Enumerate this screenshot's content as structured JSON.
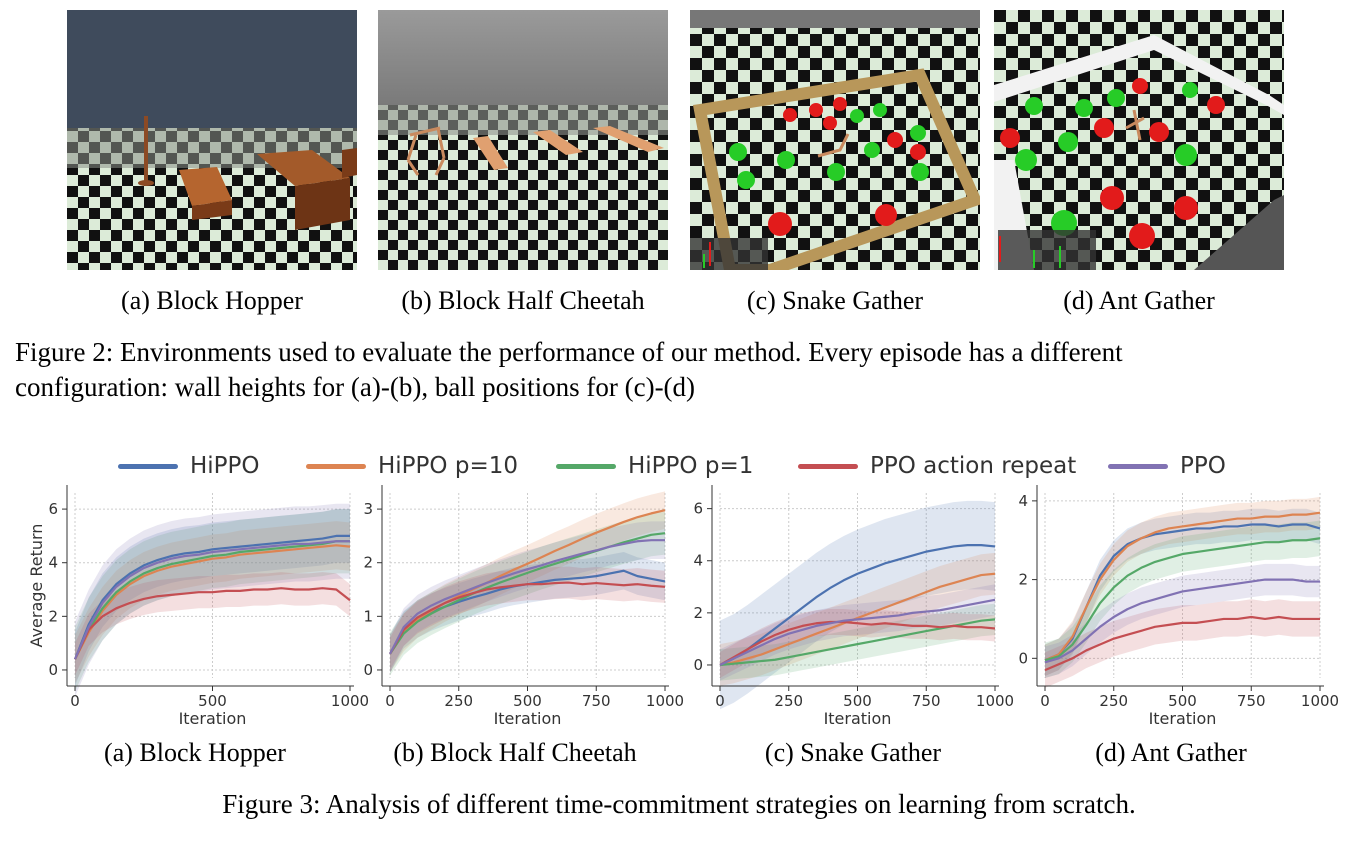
{
  "figure2": {
    "panels": [
      {
        "id": "a",
        "caption": "(a) Block Hopper"
      },
      {
        "id": "b",
        "caption": "(b) Block Half Cheetah"
      },
      {
        "id": "c",
        "caption": "(c) Snake Gather"
      },
      {
        "id": "d",
        "caption": "(d) Ant Gather"
      }
    ],
    "caption_line1": "Figure 2: Environments used to evaluate the performance of our method. Every episode has a different",
    "caption_line2": "configuration: wall heights for (a)-(b), ball positions for (c)-(d)"
  },
  "figure3": {
    "caption": "Figure 3: Analysis of different time-commitment strategies on learning from scratch.",
    "subcaptions": [
      "(a) Block Hopper",
      "(b) Block Half Cheetah",
      "(c) Snake Gather",
      "(d) Ant Gather"
    ]
  },
  "legend": [
    {
      "name": "HiPPO",
      "color": "#4c72b0"
    },
    {
      "name": "HiPPO p=10",
      "color": "#dd8452"
    },
    {
      "name": "HiPPO p=1",
      "color": "#55a868"
    },
    {
      "name": "PPO action repeat",
      "color": "#c44e52"
    },
    {
      "name": "PPO",
      "color": "#8172b3"
    }
  ],
  "chart_data": [
    {
      "type": "line",
      "title": "(a) Block Hopper",
      "xlabel": "Iteration",
      "ylabel": "Average Return",
      "xlim": [
        0,
        1000
      ],
      "ylim": [
        -0.3,
        6.6
      ],
      "xticks": [
        0,
        500,
        1000
      ],
      "yticks": [
        0,
        2,
        4,
        6
      ],
      "x": [
        0,
        50,
        100,
        150,
        200,
        250,
        300,
        350,
        400,
        450,
        500,
        550,
        600,
        650,
        700,
        750,
        800,
        850,
        900,
        950,
        1000
      ],
      "series": [
        {
          "name": "HiPPO",
          "values": [
            0.4,
            1.7,
            2.6,
            3.2,
            3.6,
            3.9,
            4.1,
            4.25,
            4.35,
            4.4,
            4.5,
            4.55,
            4.6,
            4.65,
            4.7,
            4.75,
            4.8,
            4.85,
            4.9,
            5.0,
            5.0
          ],
          "band": 1.0
        },
        {
          "name": "HiPPO p=10",
          "values": [
            0.4,
            1.4,
            2.2,
            2.8,
            3.2,
            3.5,
            3.7,
            3.85,
            3.95,
            4.05,
            4.15,
            4.2,
            4.3,
            4.35,
            4.4,
            4.45,
            4.5,
            4.55,
            4.6,
            4.65,
            4.6
          ],
          "band": 0.9
        },
        {
          "name": "HiPPO p=1",
          "values": [
            0.4,
            1.5,
            2.3,
            2.9,
            3.3,
            3.6,
            3.8,
            3.95,
            4.05,
            4.15,
            4.25,
            4.3,
            4.4,
            4.45,
            4.5,
            4.55,
            4.6,
            4.65,
            4.7,
            4.8,
            4.8
          ],
          "band": 1.2
        },
        {
          "name": "PPO action repeat",
          "values": [
            0.4,
            1.5,
            2.0,
            2.3,
            2.5,
            2.65,
            2.75,
            2.8,
            2.85,
            2.9,
            2.9,
            2.95,
            2.95,
            3.0,
            3.0,
            3.05,
            3.0,
            3.0,
            3.05,
            3.0,
            2.6
          ],
          "band": 0.6
        },
        {
          "name": "PPO",
          "values": [
            0.4,
            1.6,
            2.5,
            3.1,
            3.5,
            3.8,
            4.0,
            4.15,
            4.25,
            4.3,
            4.4,
            4.45,
            4.5,
            4.55,
            4.6,
            4.65,
            4.7,
            4.7,
            4.75,
            4.8,
            4.8
          ],
          "band": 1.4
        }
      ]
    },
    {
      "type": "line",
      "title": "(b) Block Half Cheetah",
      "xlabel": "Iteration",
      "ylabel": "",
      "xlim": [
        0,
        1000
      ],
      "ylim": [
        -0.15,
        3.3
      ],
      "xticks": [
        0,
        250,
        500,
        750,
        1000
      ],
      "yticks": [
        0,
        1,
        2,
        3
      ],
      "x": [
        0,
        50,
        100,
        150,
        200,
        250,
        300,
        350,
        400,
        450,
        500,
        550,
        600,
        650,
        700,
        750,
        800,
        850,
        900,
        950,
        1000
      ],
      "series": [
        {
          "name": "HiPPO",
          "values": [
            0.3,
            0.75,
            0.95,
            1.08,
            1.18,
            1.27,
            1.35,
            1.42,
            1.5,
            1.56,
            1.6,
            1.64,
            1.68,
            1.7,
            1.72,
            1.75,
            1.8,
            1.85,
            1.75,
            1.7,
            1.65
          ],
          "band": 0.35
        },
        {
          "name": "HiPPO p=10",
          "values": [
            0.3,
            0.7,
            0.95,
            1.1,
            1.25,
            1.38,
            1.5,
            1.62,
            1.75,
            1.87,
            1.98,
            2.1,
            2.22,
            2.33,
            2.45,
            2.56,
            2.66,
            2.76,
            2.85,
            2.92,
            2.98
          ],
          "band": 0.35
        },
        {
          "name": "HiPPO p=1",
          "values": [
            0.3,
            0.68,
            0.9,
            1.05,
            1.18,
            1.3,
            1.42,
            1.53,
            1.63,
            1.72,
            1.81,
            1.9,
            1.98,
            2.06,
            2.14,
            2.22,
            2.3,
            2.38,
            2.45,
            2.52,
            2.55
          ],
          "band": 0.4
        },
        {
          "name": "PPO action repeat",
          "values": [
            0.3,
            0.75,
            0.98,
            1.12,
            1.25,
            1.35,
            1.43,
            1.5,
            1.54,
            1.57,
            1.6,
            1.6,
            1.62,
            1.63,
            1.6,
            1.62,
            1.6,
            1.58,
            1.6,
            1.57,
            1.55
          ],
          "band": 0.3
        },
        {
          "name": "PPO",
          "values": [
            0.3,
            0.8,
            1.05,
            1.2,
            1.32,
            1.42,
            1.52,
            1.62,
            1.71,
            1.8,
            1.88,
            1.95,
            2.03,
            2.1,
            2.17,
            2.23,
            2.3,
            2.35,
            2.4,
            2.42,
            2.42
          ],
          "band": 0.35
        }
      ]
    },
    {
      "type": "line",
      "title": "(c) Snake Gather",
      "xlabel": "Iteration",
      "ylabel": "",
      "xlim": [
        0,
        1000
      ],
      "ylim": [
        -0.5,
        6.6
      ],
      "xticks": [
        0,
        250,
        500,
        750,
        1000
      ],
      "yticks": [
        0,
        2,
        4,
        6
      ],
      "x": [
        0,
        50,
        100,
        150,
        200,
        250,
        300,
        350,
        400,
        450,
        500,
        550,
        600,
        650,
        700,
        750,
        800,
        850,
        900,
        950,
        1000
      ],
      "series": [
        {
          "name": "HiPPO",
          "values": [
            0.0,
            0.25,
            0.6,
            1.0,
            1.4,
            1.8,
            2.2,
            2.6,
            2.95,
            3.25,
            3.5,
            3.7,
            3.9,
            4.05,
            4.2,
            4.35,
            4.45,
            4.55,
            4.6,
            4.6,
            4.55
          ],
          "band": 1.7
        },
        {
          "name": "HiPPO p=10",
          "values": [
            0.0,
            0.1,
            0.25,
            0.4,
            0.6,
            0.8,
            1.0,
            1.2,
            1.4,
            1.6,
            1.8,
            2.0,
            2.2,
            2.4,
            2.6,
            2.8,
            3.0,
            3.15,
            3.3,
            3.45,
            3.5
          ],
          "band": 0.8
        },
        {
          "name": "HiPPO p=1",
          "values": [
            0.0,
            0.05,
            0.1,
            0.15,
            0.2,
            0.3,
            0.4,
            0.5,
            0.6,
            0.7,
            0.8,
            0.9,
            1.0,
            1.1,
            1.2,
            1.3,
            1.4,
            1.5,
            1.6,
            1.7,
            1.75
          ],
          "band": 0.6
        },
        {
          "name": "PPO action repeat",
          "values": [
            0.0,
            0.3,
            0.6,
            0.9,
            1.15,
            1.35,
            1.5,
            1.6,
            1.65,
            1.65,
            1.6,
            1.55,
            1.6,
            1.55,
            1.5,
            1.5,
            1.45,
            1.5,
            1.45,
            1.45,
            1.4
          ],
          "band": 0.5
        },
        {
          "name": "PPO",
          "values": [
            0.0,
            0.25,
            0.5,
            0.75,
            1.0,
            1.2,
            1.35,
            1.5,
            1.6,
            1.7,
            1.75,
            1.8,
            1.85,
            1.9,
            2.0,
            2.05,
            2.1,
            2.2,
            2.3,
            2.4,
            2.5
          ],
          "band": 0.6
        }
      ]
    },
    {
      "type": "line",
      "title": "(d) Ant Gather",
      "xlabel": "Iteration",
      "ylabel": "",
      "xlim": [
        0,
        1000
      ],
      "ylim": [
        -0.5,
        4.2
      ],
      "xticks": [
        0,
        250,
        500,
        750,
        1000
      ],
      "yticks": [
        0,
        2,
        4
      ],
      "x": [
        0,
        50,
        100,
        150,
        200,
        250,
        300,
        350,
        400,
        450,
        500,
        550,
        600,
        650,
        700,
        750,
        800,
        850,
        900,
        950,
        1000
      ],
      "series": [
        {
          "name": "HiPPO",
          "values": [
            -0.05,
            0.1,
            0.5,
            1.3,
            2.1,
            2.6,
            2.9,
            3.05,
            3.15,
            3.2,
            3.25,
            3.3,
            3.3,
            3.35,
            3.35,
            3.4,
            3.4,
            3.35,
            3.4,
            3.4,
            3.3
          ],
          "band": 0.4
        },
        {
          "name": "HiPPO p=10",
          "values": [
            -0.05,
            0.1,
            0.55,
            1.3,
            2.0,
            2.5,
            2.85,
            3.05,
            3.2,
            3.3,
            3.35,
            3.4,
            3.45,
            3.5,
            3.55,
            3.55,
            3.6,
            3.6,
            3.65,
            3.65,
            3.7
          ],
          "band": 0.4
        },
        {
          "name": "HiPPO p=1",
          "values": [
            -0.05,
            0.05,
            0.35,
            0.85,
            1.4,
            1.8,
            2.1,
            2.3,
            2.45,
            2.55,
            2.65,
            2.7,
            2.75,
            2.8,
            2.85,
            2.9,
            2.95,
            2.95,
            3.0,
            3.0,
            3.05
          ],
          "band": 0.45
        },
        {
          "name": "PPO action repeat",
          "values": [
            -0.3,
            -0.15,
            0.0,
            0.2,
            0.35,
            0.5,
            0.6,
            0.7,
            0.8,
            0.85,
            0.9,
            0.9,
            0.95,
            1.0,
            1.0,
            1.05,
            1.0,
            1.05,
            1.0,
            1.0,
            1.0
          ],
          "band": 0.45
        },
        {
          "name": "PPO",
          "values": [
            -0.1,
            0.0,
            0.2,
            0.5,
            0.8,
            1.05,
            1.25,
            1.4,
            1.5,
            1.6,
            1.7,
            1.75,
            1.8,
            1.85,
            1.9,
            1.95,
            2.0,
            2.0,
            2.0,
            1.95,
            1.95
          ],
          "band": 0.4
        }
      ]
    }
  ]
}
